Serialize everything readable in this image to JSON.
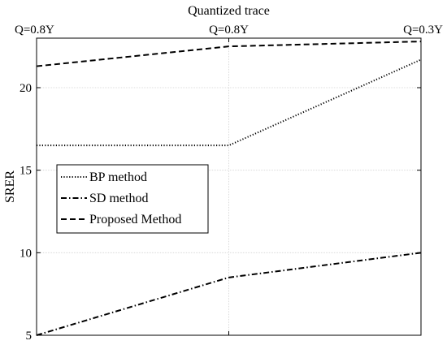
{
  "chart_data": {
    "type": "line",
    "title": "Quantized trace",
    "xlabel": "",
    "ylabel": "SRER",
    "x": [
      0,
      1,
      2
    ],
    "top_tick_labels": [
      "Q=0.8Y",
      "Q=0.8Y",
      "Q=0.3Y"
    ],
    "xlim": [
      0,
      2
    ],
    "ylim": [
      5,
      23
    ],
    "yticks": [
      5,
      10,
      15,
      20
    ],
    "grid": true,
    "legend_position": "center-left",
    "series": [
      {
        "name": "BP method",
        "values": [
          16.5,
          16.5,
          21.7
        ],
        "dash": "dotted"
      },
      {
        "name": "SD method",
        "values": [
          5.0,
          8.5,
          10.0
        ],
        "dash": "dashdot"
      },
      {
        "name": "Proposed Method",
        "values": [
          21.3,
          22.5,
          22.8
        ],
        "dash": "dashed"
      }
    ]
  }
}
